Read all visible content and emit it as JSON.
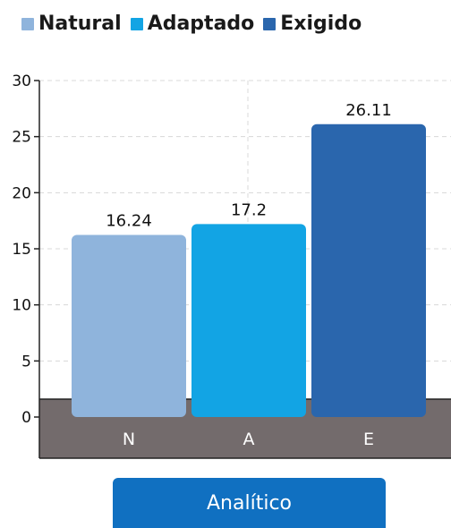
{
  "chart_data": {
    "type": "bar",
    "categories": [
      "N",
      "A",
      "E"
    ],
    "series": [
      {
        "name": "Natural",
        "values": [
          16.24,
          null,
          null
        ],
        "color": "#8fb4dc"
      },
      {
        "name": "Adaptado",
        "values": [
          null,
          17.2,
          null
        ],
        "color": "#12a4e4"
      },
      {
        "name": "Exigido",
        "values": [
          null,
          null,
          26.11
        ],
        "color": "#2a66ad"
      }
    ],
    "values": [
      16.24,
      17.2,
      26.11
    ],
    "value_labels": [
      "16.24",
      "17.2",
      "26.11"
    ],
    "colors": [
      "#8fb4dc",
      "#12a4e4",
      "#2a66ad"
    ],
    "ylim": [
      0,
      30
    ],
    "yticks": [
      0,
      5,
      10,
      15,
      20,
      25,
      30
    ],
    "grid": true,
    "legend_position": "top",
    "xlabel": "",
    "ylabel": ""
  },
  "legend": [
    {
      "label": "Natural",
      "color": "#8fb4dc"
    },
    {
      "label": "Adaptado",
      "color": "#12a4e4"
    },
    {
      "label": "Exigido",
      "color": "#2a66ad"
    }
  ],
  "footer": {
    "button_label": "Analítico",
    "color": "#1070c1"
  }
}
